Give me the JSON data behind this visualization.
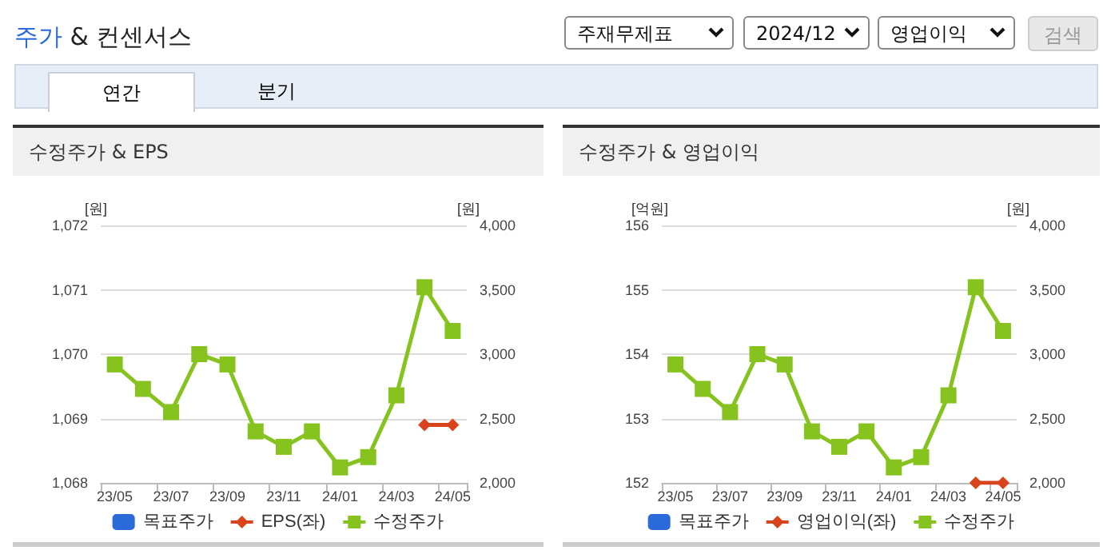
{
  "chart_data": [
    {
      "type": "other",
      "title": "주가 & 컨센서스",
      "annotations": [
        "주재무제표",
        "2024/12",
        "영업이익",
        "검색",
        "연간",
        "분기"
      ]
    },
    {
      "type": "line",
      "title": "수정주가 & EPS",
      "ylabel": "[원]",
      "y2label": "[원]",
      "categories": [
        "23/05",
        null,
        "23/07",
        null,
        "23/09",
        null,
        "23/11",
        null,
        "24/01",
        null,
        "24/03",
        null,
        "24/05"
      ],
      "series": [
        {
          "name": "목표주가",
          "type": "bar",
          "color": "#2a6ad9",
          "values": [
            null,
            null,
            null,
            null,
            null,
            null,
            null,
            null,
            null,
            null,
            null,
            null,
            null
          ]
        },
        {
          "name": "EPS(좌)",
          "color": "#d9441c",
          "marker": "diamond",
          "values": [
            null,
            null,
            null,
            null,
            null,
            null,
            null,
            null,
            null,
            null,
            null,
            1068.9,
            1068.9
          ]
        },
        {
          "name": "수정주가",
          "color": "#86c31e",
          "marker": "square",
          "axis": "y2",
          "values": [
            2920,
            2730,
            2550,
            3000,
            2920,
            2400,
            2280,
            2400,
            2120,
            2200,
            2680,
            3520,
            3180
          ]
        }
      ],
      "ylim": [
        1068,
        1072
      ],
      "yticks": [
        {
          "value": 1068,
          "label": "1,068"
        },
        {
          "value": 1069,
          "label": "1,069"
        },
        {
          "value": 1070,
          "label": "1,070"
        },
        {
          "value": 1071,
          "label": "1,071"
        },
        {
          "value": 1072,
          "label": "1,072"
        }
      ],
      "y2lim": [
        2000,
        4000
      ],
      "y2ticks": [
        {
          "value": 2000,
          "label": "2,000"
        },
        {
          "value": 2500,
          "label": "2,500"
        },
        {
          "value": 3000,
          "label": "3,000"
        },
        {
          "value": 3500,
          "label": "3,500"
        },
        {
          "value": 4000,
          "label": "4,000"
        }
      ],
      "grid": "y",
      "legend": "bottom"
    },
    {
      "type": "line",
      "title": "수정주가 & 영업이익",
      "ylabel": "[억원]",
      "y2label": "[원]",
      "categories": [
        "23/05",
        null,
        "23/07",
        null,
        "23/09",
        null,
        "23/11",
        null,
        "24/01",
        null,
        "24/03",
        null,
        "24/05"
      ],
      "series": [
        {
          "name": "목표주가",
          "type": "bar",
          "color": "#2a6ad9",
          "values": [
            null,
            null,
            null,
            null,
            null,
            null,
            null,
            null,
            null,
            null,
            null,
            null,
            null
          ]
        },
        {
          "name": "영업이익(좌)",
          "color": "#d9441c",
          "marker": "diamond",
          "values": [
            null,
            null,
            null,
            null,
            null,
            null,
            null,
            null,
            null,
            null,
            null,
            152.0,
            152.0
          ]
        },
        {
          "name": "수정주가",
          "color": "#86c31e",
          "marker": "square",
          "axis": "y2",
          "values": [
            2920,
            2730,
            2550,
            3000,
            2920,
            2400,
            2280,
            2400,
            2120,
            2200,
            2680,
            3520,
            3180
          ]
        }
      ],
      "ylim": [
        152,
        156
      ],
      "yticks": [
        152,
        153,
        154,
        155,
        156
      ],
      "y2lim": [
        2000,
        4000
      ],
      "y2ticks": [
        {
          "value": 2000,
          "label": "2,000"
        },
        {
          "value": 2500,
          "label": "2,500"
        },
        {
          "value": 3000,
          "label": "3,000"
        },
        {
          "value": 3500,
          "label": "3,500"
        },
        {
          "value": 4000,
          "label": "4,000"
        }
      ],
      "grid": "y",
      "legend": "bottom"
    }
  ]
}
